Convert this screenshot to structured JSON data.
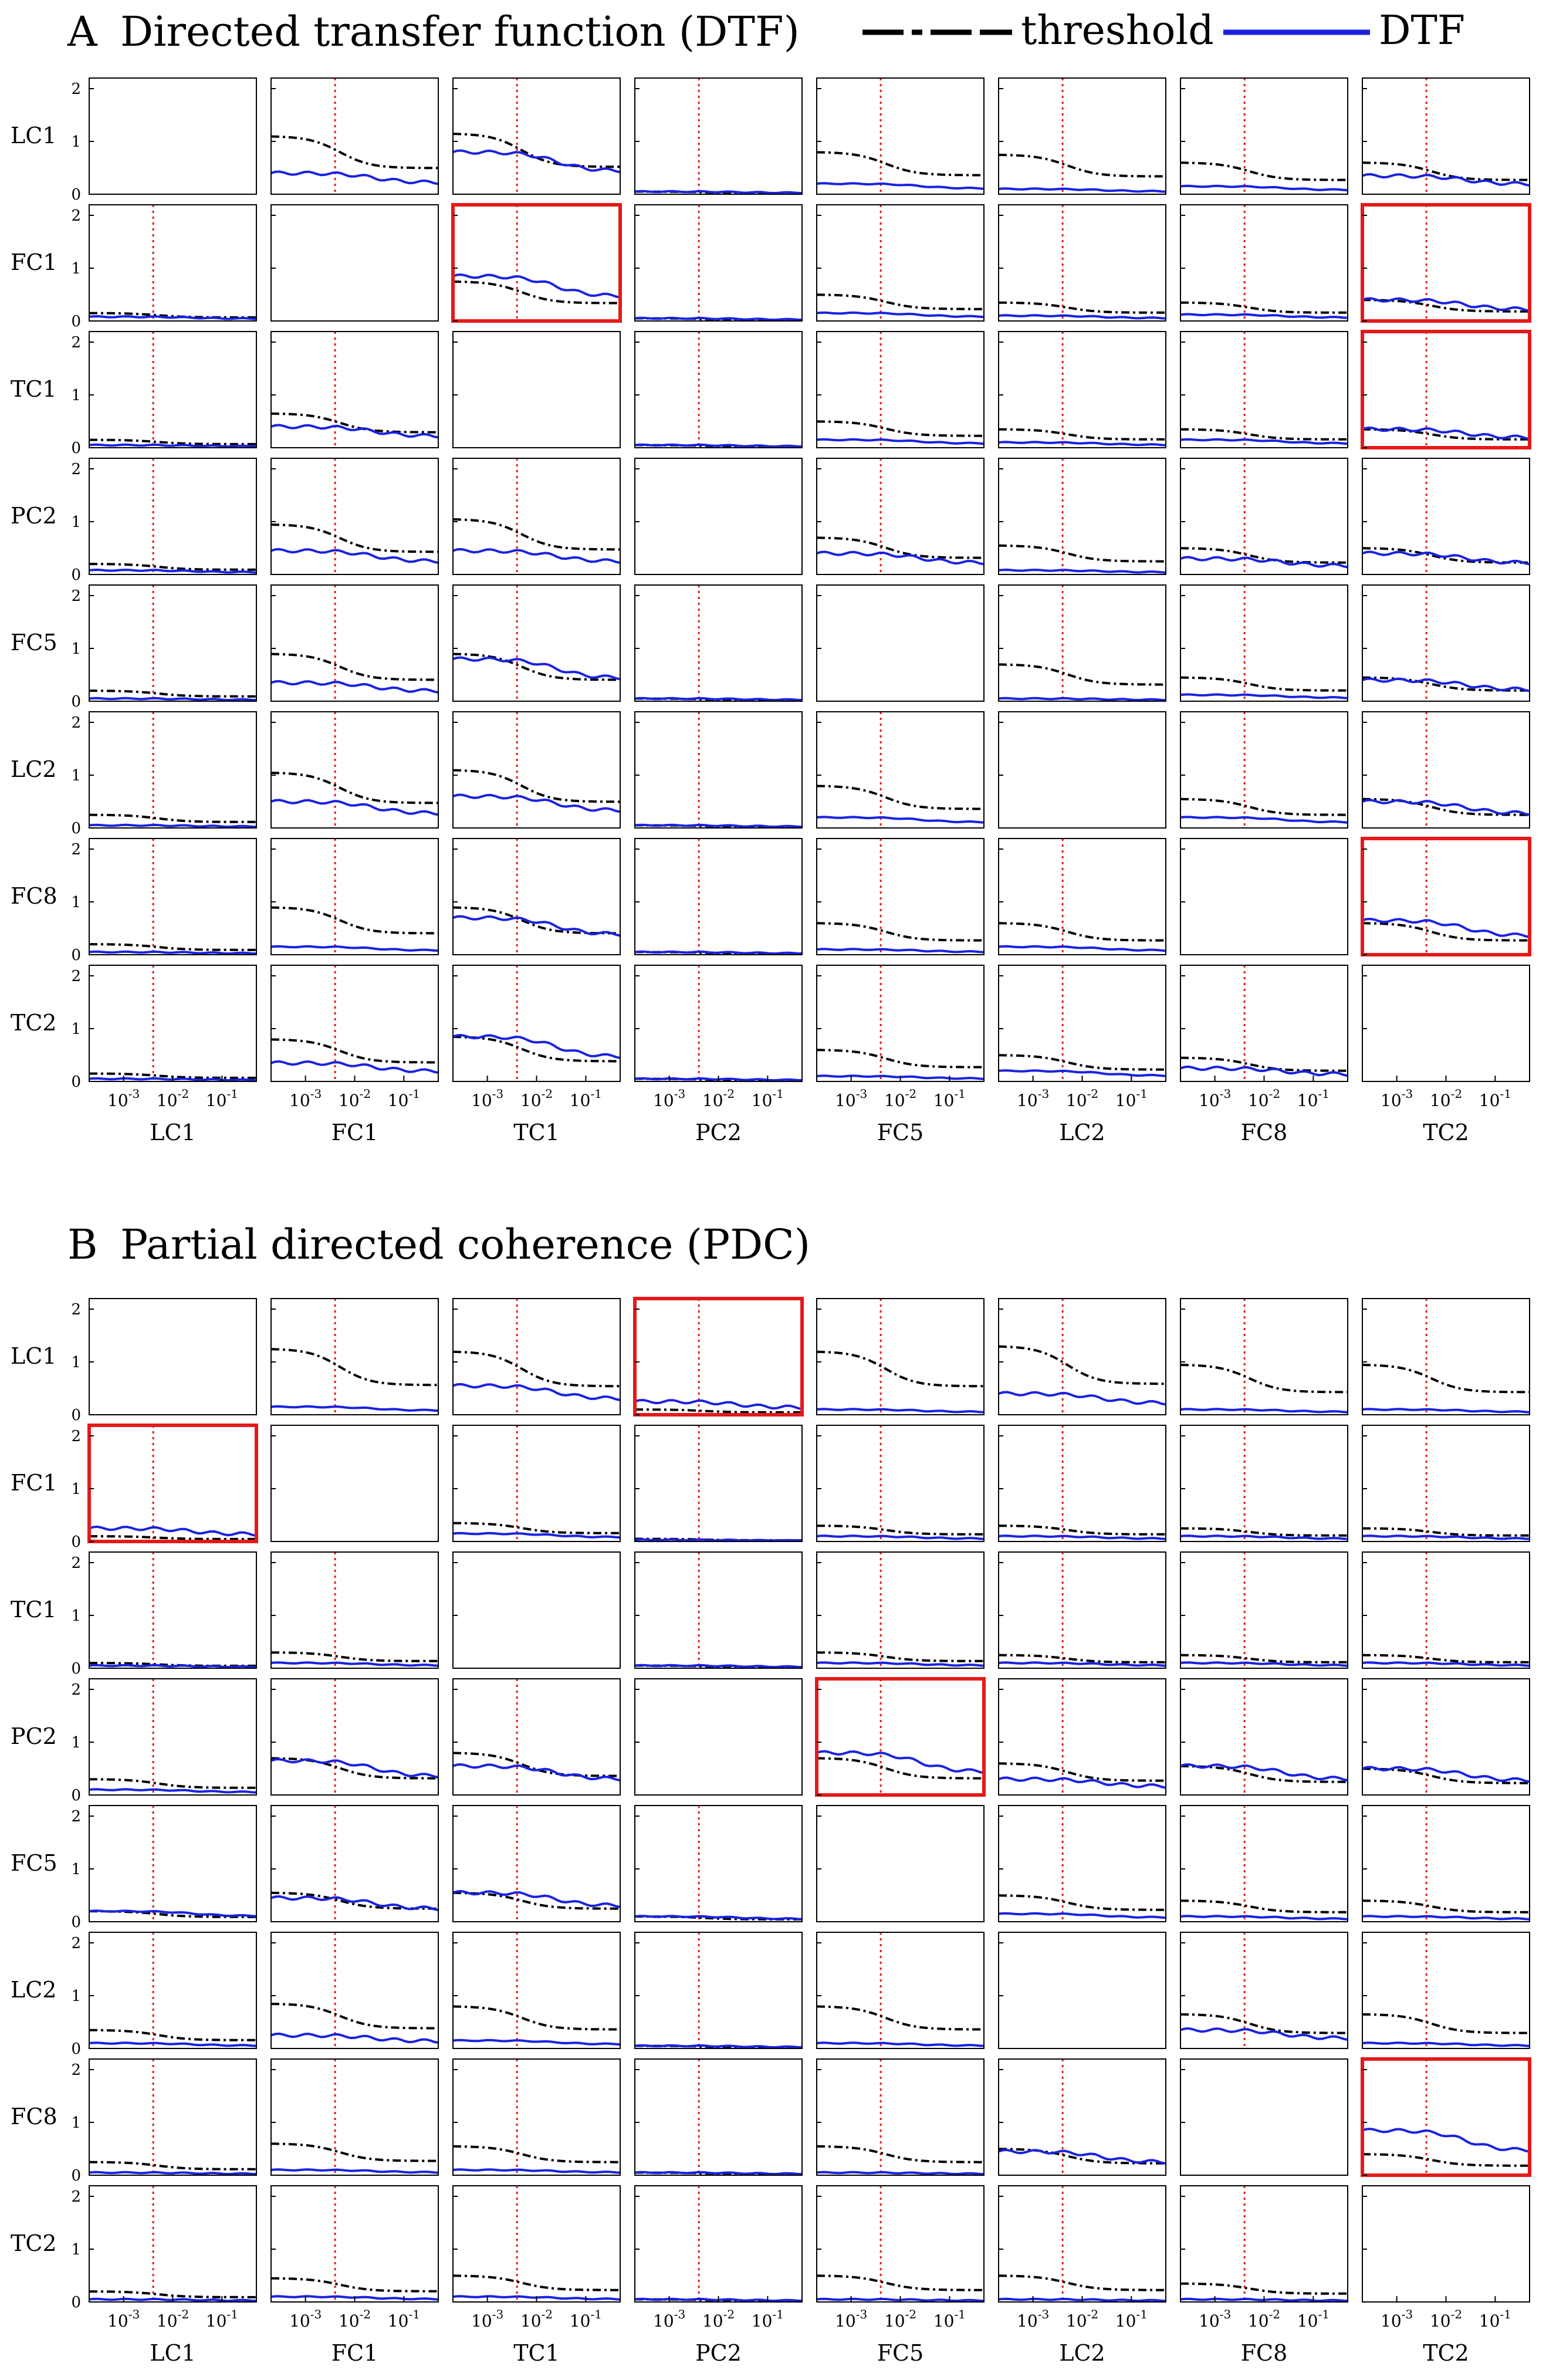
{
  "legend": {
    "threshold_label": "threshold",
    "dtf_label": "DTF"
  },
  "chart_data": [
    {
      "type": "line",
      "panel": "A",
      "title": "Directed transfer function (DTF)",
      "channels": [
        "LC1",
        "FC1",
        "TC1",
        "PC2",
        "FC5",
        "LC2",
        "FC8",
        "TC2"
      ],
      "ytick_labels": [
        "0",
        "1",
        "2"
      ],
      "ylim": [
        0,
        2.2
      ],
      "xscale": "log",
      "xlim": [
        0.0002,
        0.5
      ],
      "xtick_values": [
        0.001,
        0.01,
        0.1
      ],
      "xtick_labels": [
        "10-3",
        "10-2",
        "10-1"
      ],
      "red_line_x": 0.004,
      "series_names": [
        "threshold",
        "DTF"
      ],
      "highlighted": [
        [
          1,
          2
        ],
        [
          1,
          7
        ],
        [
          2,
          7
        ],
        [
          6,
          7
        ]
      ],
      "grid": [
        [
          null,
          [
            1.1,
            0.4
          ],
          [
            1.15,
            0.8
          ],
          [
            0.05,
            0.05
          ],
          [
            0.8,
            0.2
          ],
          [
            0.75,
            0.1
          ],
          [
            0.6,
            0.15
          ],
          [
            0.6,
            0.35
          ]
        ],
        [
          [
            0.15,
            0.08
          ],
          null,
          [
            0.75,
            0.85
          ],
          [
            0.05,
            0.05
          ],
          [
            0.5,
            0.15
          ],
          [
            0.35,
            0.1
          ],
          [
            0.35,
            0.12
          ],
          [
            0.4,
            0.4
          ]
        ],
        [
          [
            0.15,
            0.05
          ],
          [
            0.65,
            0.4
          ],
          null,
          [
            0.05,
            0.05
          ],
          [
            0.5,
            0.15
          ],
          [
            0.35,
            0.1
          ],
          [
            0.35,
            0.15
          ],
          [
            0.35,
            0.35
          ]
        ],
        [
          [
            0.2,
            0.08
          ],
          [
            0.95,
            0.45
          ],
          [
            1.05,
            0.45
          ],
          null,
          [
            0.7,
            0.4
          ],
          [
            0.55,
            0.08
          ],
          [
            0.5,
            0.3
          ],
          [
            0.5,
            0.4
          ]
        ],
        [
          [
            0.2,
            0.05
          ],
          [
            0.9,
            0.35
          ],
          [
            0.9,
            0.8
          ],
          [
            0.05,
            0.05
          ],
          null,
          [
            0.7,
            0.05
          ],
          [
            0.45,
            0.12
          ],
          [
            0.45,
            0.4
          ]
        ],
        [
          [
            0.25,
            0.05
          ],
          [
            1.05,
            0.5
          ],
          [
            1.1,
            0.6
          ],
          [
            0.05,
            0.05
          ],
          [
            0.8,
            0.2
          ],
          null,
          [
            0.55,
            0.2
          ],
          [
            0.55,
            0.5
          ]
        ],
        [
          [
            0.2,
            0.05
          ],
          [
            0.9,
            0.15
          ],
          [
            0.9,
            0.7
          ],
          [
            0.05,
            0.05
          ],
          [
            0.6,
            0.1
          ],
          [
            0.6,
            0.15
          ],
          null,
          [
            0.6,
            0.65
          ]
        ],
        [
          [
            0.15,
            0.05
          ],
          [
            0.8,
            0.35
          ],
          [
            0.85,
            0.85
          ],
          [
            0.05,
            0.05
          ],
          [
            0.6,
            0.1
          ],
          [
            0.5,
            0.2
          ],
          [
            0.45,
            0.25
          ],
          null
        ]
      ]
    },
    {
      "type": "line",
      "panel": "B",
      "title": "Partial directed coherence (PDC)",
      "channels": [
        "LC1",
        "FC1",
        "TC1",
        "PC2",
        "FC5",
        "LC2",
        "FC8",
        "TC2"
      ],
      "ytick_labels": [
        "0",
        "1",
        "2"
      ],
      "ylim": [
        0,
        2.2
      ],
      "xscale": "log",
      "xlim": [
        0.0002,
        0.5
      ],
      "xtick_values": [
        0.001,
        0.01,
        0.1
      ],
      "xtick_labels": [
        "10-3",
        "10-2",
        "10-1"
      ],
      "red_line_x": 0.004,
      "series_names": [
        "threshold",
        "PDC"
      ],
      "highlighted": [
        [
          0,
          3
        ],
        [
          1,
          0
        ],
        [
          3,
          4
        ],
        [
          6,
          7
        ]
      ],
      "grid": [
        [
          null,
          [
            1.25,
            0.15
          ],
          [
            1.2,
            0.55
          ],
          [
            0.1,
            0.25
          ],
          [
            1.2,
            0.1
          ],
          [
            1.3,
            0.4
          ],
          [
            0.95,
            0.1
          ],
          [
            0.95,
            0.1
          ]
        ],
        [
          [
            0.1,
            0.25
          ],
          null,
          [
            0.35,
            0.15
          ],
          [
            0.05,
            0.03
          ],
          [
            0.3,
            0.1
          ],
          [
            0.3,
            0.1
          ],
          [
            0.25,
            0.1
          ],
          [
            0.25,
            0.1
          ]
        ],
        [
          [
            0.1,
            0.05
          ],
          [
            0.3,
            0.1
          ],
          null,
          [
            0.05,
            0.05
          ],
          [
            0.3,
            0.1
          ],
          [
            0.25,
            0.1
          ],
          [
            0.25,
            0.1
          ],
          [
            0.25,
            0.1
          ]
        ],
        [
          [
            0.3,
            0.1
          ],
          [
            0.7,
            0.65
          ],
          [
            0.8,
            0.55
          ],
          null,
          [
            0.7,
            0.8
          ],
          [
            0.6,
            0.3
          ],
          [
            0.55,
            0.55
          ],
          [
            0.5,
            0.5
          ]
        ],
        [
          [
            0.2,
            0.2
          ],
          [
            0.55,
            0.45
          ],
          [
            0.55,
            0.55
          ],
          [
            0.1,
            0.1
          ],
          null,
          [
            0.5,
            0.15
          ],
          [
            0.4,
            0.1
          ],
          [
            0.4,
            0.1
          ]
        ],
        [
          [
            0.35,
            0.1
          ],
          [
            0.85,
            0.25
          ],
          [
            0.8,
            0.15
          ],
          [
            0.05,
            0.05
          ],
          [
            0.8,
            0.1
          ],
          null,
          [
            0.65,
            0.35
          ],
          [
            0.65,
            0.1
          ]
        ],
        [
          [
            0.25,
            0.05
          ],
          [
            0.6,
            0.1
          ],
          [
            0.55,
            0.1
          ],
          [
            0.05,
            0.05
          ],
          [
            0.55,
            0.05
          ],
          [
            0.5,
            0.45
          ],
          null,
          [
            0.4,
            0.85
          ]
        ],
        [
          [
            0.2,
            0.05
          ],
          [
            0.45,
            0.1
          ],
          [
            0.5,
            0.1
          ],
          [
            0.05,
            0.05
          ],
          [
            0.5,
            0.05
          ],
          [
            0.5,
            0.05
          ],
          [
            0.35,
            0.05
          ],
          null
        ]
      ]
    }
  ]
}
